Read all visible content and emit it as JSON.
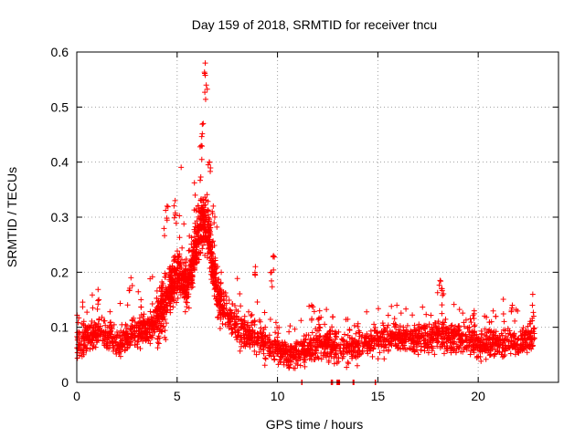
{
  "chart_data": {
    "type": "scatter",
    "title": "Day 159 of 2018, SRMTID for receiver tncu",
    "xlabel": "GPS time / hours",
    "ylabel": "SRMTID / TECUs",
    "xlim": [
      0,
      24
    ],
    "ylim": [
      0,
      0.6
    ],
    "xticks": [
      0,
      5,
      10,
      15,
      20
    ],
    "yticks": [
      0,
      0.1,
      0.2,
      0.3,
      0.4,
      0.5,
      0.6
    ],
    "xtick_labels": [
      "0",
      "5",
      "10",
      "15",
      "20"
    ],
    "ytick_labels": [
      "0",
      "0.1",
      "0.2",
      "0.3",
      "0.4",
      "0.5",
      "0.6"
    ],
    "grid": true,
    "marker": "+",
    "color": "#ff0000",
    "series": [
      {
        "name": "SRMTID",
        "envelope_x": [
          0,
          0.5,
          1,
          1.5,
          2,
          2.5,
          3,
          3.5,
          4,
          4.5,
          5,
          5.5,
          6,
          6.2,
          6.5,
          7,
          7.5,
          8,
          8.5,
          9,
          9.5,
          10,
          10.5,
          11,
          11.5,
          12,
          12.5,
          13,
          13.5,
          14,
          14.5,
          15,
          15.5,
          16,
          16.5,
          17,
          17.5,
          18,
          18.5,
          19,
          19.5,
          20,
          20.5,
          21,
          21.5,
          22,
          22.5,
          22.8
        ],
        "envelope_y": [
          0.07,
          0.08,
          0.09,
          0.09,
          0.07,
          0.08,
          0.09,
          0.1,
          0.12,
          0.15,
          0.2,
          0.18,
          0.25,
          0.3,
          0.28,
          0.16,
          0.12,
          0.1,
          0.09,
          0.08,
          0.07,
          0.06,
          0.05,
          0.05,
          0.06,
          0.07,
          0.07,
          0.06,
          0.06,
          0.07,
          0.07,
          0.08,
          0.08,
          0.08,
          0.08,
          0.08,
          0.08,
          0.09,
          0.08,
          0.08,
          0.08,
          0.07,
          0.07,
          0.07,
          0.07,
          0.07,
          0.08,
          0.08
        ],
        "spread": 0.035,
        "peaks": [
          {
            "x": 6.4,
            "y": 0.58
          },
          {
            "x": 6.45,
            "y": 0.54
          },
          {
            "x": 6.3,
            "y": 0.47
          },
          {
            "x": 6.2,
            "y": 0.43
          },
          {
            "x": 6.6,
            "y": 0.4
          },
          {
            "x": 4.9,
            "y": 0.33
          },
          {
            "x": 4.5,
            "y": 0.32
          },
          {
            "x": 5.9,
            "y": 0.34
          },
          {
            "x": 6.8,
            "y": 0.32
          },
          {
            "x": 9.8,
            "y": 0.23
          },
          {
            "x": 9.7,
            "y": 0.2
          },
          {
            "x": 8.9,
            "y": 0.21
          },
          {
            "x": 18.1,
            "y": 0.185
          },
          {
            "x": 18.2,
            "y": 0.17
          },
          {
            "x": 2.7,
            "y": 0.19
          },
          {
            "x": 11.7,
            "y": 0.14
          },
          {
            "x": 12.1,
            "y": 0.13
          },
          {
            "x": 22.7,
            "y": 0.14
          },
          {
            "x": 21.7,
            "y": 0.14
          },
          {
            "x": 19.8,
            "y": 0.13
          },
          {
            "x": 1.1,
            "y": 0.15
          },
          {
            "x": 3.2,
            "y": 0.15
          }
        ],
        "zero_points": [
          {
            "x": 11.2,
            "y": 0
          },
          {
            "x": 12.7,
            "y": 0
          },
          {
            "x": 13.0,
            "y": 0
          },
          {
            "x": 13.1,
            "y": 0
          },
          {
            "x": 13.8,
            "y": 0
          },
          {
            "x": 14.9,
            "y": 0
          }
        ]
      }
    ]
  }
}
